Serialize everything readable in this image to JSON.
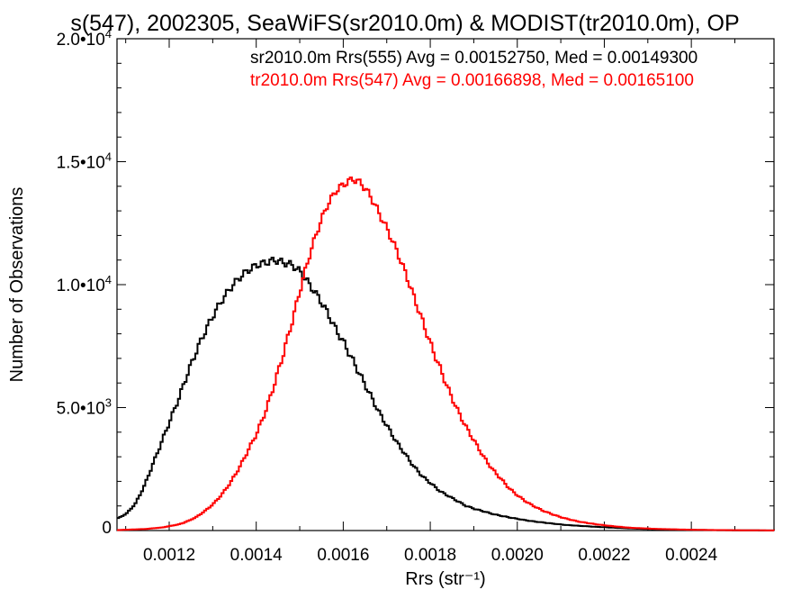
{
  "chart_data": {
    "type": "line",
    "title": "s(547), 2002305, SeaWiFS(sr2010.0m) & MODIST(tr2010.0m), OP",
    "xlabel": "Rrs (str⁻¹)",
    "ylabel": "Number of Observations",
    "xlim": [
      0.00108,
      0.00259
    ],
    "ylim": [
      0,
      20000
    ],
    "x_ticks": [
      {
        "value": 0.0012,
        "label": "0.0012"
      },
      {
        "value": 0.0014,
        "label": "0.0014"
      },
      {
        "value": 0.0016,
        "label": "0.0016"
      },
      {
        "value": 0.0018,
        "label": "0.0018"
      },
      {
        "value": 0.002,
        "label": "0.0020"
      },
      {
        "value": 0.0022,
        "label": "0.0022"
      },
      {
        "value": 0.0024,
        "label": "0.0024"
      }
    ],
    "y_ticks": [
      {
        "value": 0,
        "mantissa": "0",
        "exp": ""
      },
      {
        "value": 5000,
        "mantissa": "5.0•10",
        "exp": "3"
      },
      {
        "value": 10000,
        "mantissa": "1.0•10",
        "exp": "4"
      },
      {
        "value": 15000,
        "mantissa": "1.5•10",
        "exp": "4"
      },
      {
        "value": 20000,
        "mantissa": "2.0•10",
        "exp": "4"
      }
    ],
    "legend_position": "top-right",
    "series": [
      {
        "name": "sr2010.0m Rrs(555) Avg = 0.00152750, Med = 0.00149300",
        "color": "#000000",
        "points": [
          [
            0.00108,
            500
          ],
          [
            0.0011,
            700
          ],
          [
            0.00112,
            1100
          ],
          [
            0.00114,
            1800
          ],
          [
            0.00116,
            2700
          ],
          [
            0.00118,
            3600
          ],
          [
            0.0012,
            4500
          ],
          [
            0.00122,
            5400
          ],
          [
            0.00124,
            6400
          ],
          [
            0.00126,
            7300
          ],
          [
            0.00128,
            8100
          ],
          [
            0.0013,
            8800
          ],
          [
            0.00132,
            9400
          ],
          [
            0.00134,
            9900
          ],
          [
            0.00136,
            10300
          ],
          [
            0.00138,
            10600
          ],
          [
            0.0014,
            10800
          ],
          [
            0.00142,
            10900
          ],
          [
            0.00144,
            11000
          ],
          [
            0.00146,
            10900
          ],
          [
            0.00148,
            10800
          ],
          [
            0.0015,
            10500
          ],
          [
            0.00152,
            10000
          ],
          [
            0.00154,
            9500
          ],
          [
            0.00156,
            8900
          ],
          [
            0.00158,
            8200
          ],
          [
            0.0016,
            7600
          ],
          [
            0.00162,
            6900
          ],
          [
            0.00164,
            6200
          ],
          [
            0.00166,
            5500
          ],
          [
            0.00168,
            4800
          ],
          [
            0.0017,
            4200
          ],
          [
            0.00172,
            3600
          ],
          [
            0.00174,
            3100
          ],
          [
            0.00176,
            2600
          ],
          [
            0.00178,
            2200
          ],
          [
            0.0018,
            1900
          ],
          [
            0.00182,
            1600
          ],
          [
            0.00184,
            1400
          ],
          [
            0.00186,
            1200
          ],
          [
            0.00188,
            1000
          ],
          [
            0.0019,
            880
          ],
          [
            0.00192,
            780
          ],
          [
            0.00194,
            680
          ],
          [
            0.00196,
            600
          ],
          [
            0.00198,
            530
          ],
          [
            0.002,
            470
          ],
          [
            0.00202,
            410
          ],
          [
            0.00204,
            360
          ],
          [
            0.00206,
            320
          ],
          [
            0.00208,
            280
          ],
          [
            0.0021,
            240
          ],
          [
            0.00214,
            190
          ],
          [
            0.00218,
            150
          ],
          [
            0.00222,
            115
          ],
          [
            0.00226,
            85
          ],
          [
            0.0023,
            60
          ],
          [
            0.00236,
            38
          ],
          [
            0.00242,
            22
          ],
          [
            0.0025,
            10
          ],
          [
            0.00259,
            4
          ]
        ]
      },
      {
        "name": "tr2010.0m Rrs(547) Avg = 0.00166898, Med = 0.00165100",
        "color": "#ff0000",
        "points": [
          [
            0.00108,
            20
          ],
          [
            0.00114,
            60
          ],
          [
            0.00118,
            120
          ],
          [
            0.00122,
            250
          ],
          [
            0.00124,
            380
          ],
          [
            0.00126,
            550
          ],
          [
            0.00128,
            800
          ],
          [
            0.0013,
            1100
          ],
          [
            0.00132,
            1500
          ],
          [
            0.00134,
            2000
          ],
          [
            0.00136,
            2600
          ],
          [
            0.00138,
            3300
          ],
          [
            0.0014,
            4000
          ],
          [
            0.00142,
            4900
          ],
          [
            0.00144,
            6000
          ],
          [
            0.00146,
            7200
          ],
          [
            0.00148,
            8500
          ],
          [
            0.0015,
            9900
          ],
          [
            0.00152,
            11200
          ],
          [
            0.00154,
            12300
          ],
          [
            0.00156,
            13200
          ],
          [
            0.00158,
            13800
          ],
          [
            0.0016,
            14100
          ],
          [
            0.00162,
            14300
          ],
          [
            0.00164,
            14100
          ],
          [
            0.00166,
            13600
          ],
          [
            0.00168,
            12900
          ],
          [
            0.0017,
            12200
          ],
          [
            0.00172,
            11400
          ],
          [
            0.00174,
            10500
          ],
          [
            0.00176,
            9500
          ],
          [
            0.00178,
            8500
          ],
          [
            0.0018,
            7500
          ],
          [
            0.00182,
            6600
          ],
          [
            0.00184,
            5700
          ],
          [
            0.00186,
            4900
          ],
          [
            0.00188,
            4200
          ],
          [
            0.0019,
            3600
          ],
          [
            0.00192,
            3000
          ],
          [
            0.00194,
            2500
          ],
          [
            0.00196,
            2100
          ],
          [
            0.00198,
            1700
          ],
          [
            0.002,
            1400
          ],
          [
            0.00202,
            1150
          ],
          [
            0.00204,
            950
          ],
          [
            0.00206,
            780
          ],
          [
            0.00208,
            650
          ],
          [
            0.0021,
            530
          ],
          [
            0.00212,
            440
          ],
          [
            0.00214,
            360
          ],
          [
            0.00218,
            250
          ],
          [
            0.00222,
            170
          ],
          [
            0.00226,
            110
          ],
          [
            0.00232,
            65
          ],
          [
            0.0024,
            30
          ],
          [
            0.0025,
            12
          ],
          [
            0.00259,
            5
          ]
        ]
      }
    ]
  }
}
